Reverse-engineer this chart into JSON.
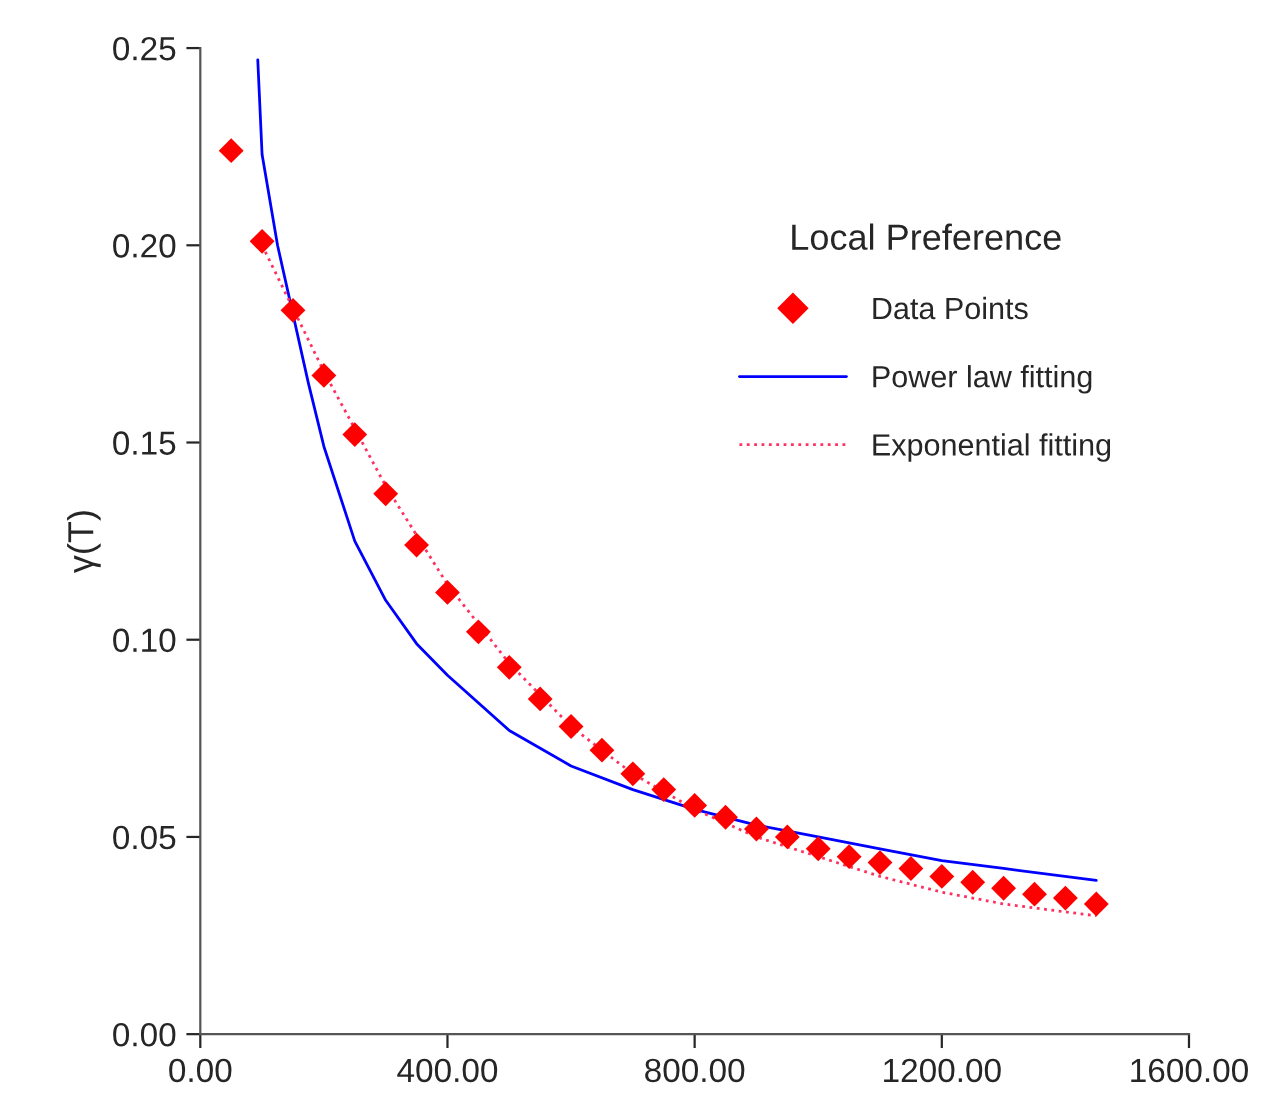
{
  "chart_data": {
    "type": "line",
    "ylabel": "γ(T)",
    "legend_title": "Local Preference",
    "legend": "top right",
    "grid": false,
    "xlim": [
      0,
      1600
    ],
    "ylim": [
      0,
      0.25
    ],
    "xticks": [
      {
        "value": 0,
        "label": "0.00"
      },
      {
        "value": 400,
        "label": "400.00"
      },
      {
        "value": 800,
        "label": "800.00"
      },
      {
        "value": 1200,
        "label": "1200.00"
      },
      {
        "value": 1600,
        "label": "1600.00"
      }
    ],
    "yticks": [
      {
        "value": 0,
        "label": "0.00"
      },
      {
        "value": 0.05,
        "label": "0.05"
      },
      {
        "value": 0.1,
        "label": "0.10"
      },
      {
        "value": 0.15,
        "label": "0.15"
      },
      {
        "value": 0.2,
        "label": "0.20"
      },
      {
        "value": 0.25,
        "label": "0.25"
      }
    ],
    "series": [
      {
        "name": "Data Points",
        "type": "scatter",
        "marker": "diamond",
        "color": "#ff0000",
        "x": [
          50,
          100,
          150,
          200,
          250,
          300,
          350,
          400,
          450,
          500,
          550,
          600,
          650,
          700,
          750,
          800,
          850,
          900,
          950,
          1000,
          1050,
          1100,
          1150,
          1200,
          1250,
          1300,
          1350,
          1400,
          1450
        ],
        "values": [
          0.224,
          0.201,
          0.1835,
          0.167,
          0.152,
          0.137,
          0.124,
          0.112,
          0.102,
          0.093,
          0.085,
          0.078,
          0.072,
          0.066,
          0.062,
          0.058,
          0.055,
          0.052,
          0.05,
          0.047,
          0.045,
          0.0435,
          0.042,
          0.04,
          0.0385,
          0.037,
          0.0355,
          0.0345,
          0.033
        ]
      },
      {
        "name": "Power law fitting",
        "line_style": "solid",
        "color": "#0000ff",
        "x": [
          93,
          100,
          125,
          175,
          200,
          250,
          300,
          350,
          400,
          500,
          600,
          700,
          800,
          900,
          1000,
          1100,
          1200,
          1300,
          1450
        ],
        "values": [
          0.247,
          0.223,
          0.2,
          0.165,
          0.149,
          0.125,
          0.11,
          0.099,
          0.091,
          0.077,
          0.068,
          0.062,
          0.057,
          0.053,
          0.05,
          0.047,
          0.044,
          0.042,
          0.039
        ]
      },
      {
        "name": "Exponential fitting",
        "line_style": "dotted",
        "color": "#ff3060",
        "x": [
          100,
          200,
          300,
          400,
          500,
          600,
          700,
          800,
          900,
          1000,
          1100,
          1200,
          1300,
          1450
        ],
        "values": [
          0.2,
          0.168,
          0.139,
          0.114,
          0.094,
          0.078,
          0.066,
          0.057,
          0.05,
          0.045,
          0.04,
          0.036,
          0.033,
          0.03
        ]
      }
    ]
  }
}
